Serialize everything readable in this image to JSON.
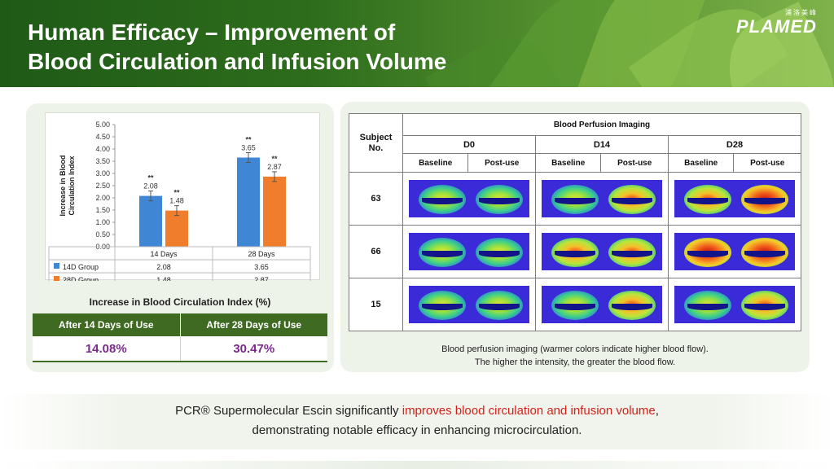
{
  "header": {
    "title_line1": "Human Efficacy – Improvement of",
    "title_line2": "Blood Circulation and Infusion Volume",
    "logo_cn": "浦洛美峰",
    "logo_text": "PLAMED"
  },
  "chart_data": {
    "type": "bar",
    "title": "",
    "ylabel": "Increase in Blood Circulation Index",
    "xlabel": "",
    "categories": [
      "14 Days",
      "28 Days"
    ],
    "series": [
      {
        "name": "14D Group",
        "values": [
          2.08,
          3.65
        ],
        "color": "#3f86d4",
        "significance": [
          "**",
          "**"
        ]
      },
      {
        "name": "28D Group",
        "values": [
          1.48,
          2.87
        ],
        "color": "#f07d2c",
        "significance": [
          "**",
          "**"
        ]
      }
    ],
    "ylim": [
      0,
      5
    ],
    "yticks": [
      "0.00",
      "0.50",
      "1.00",
      "1.50",
      "2.00",
      "2.50",
      "3.00",
      "3.50",
      "4.00",
      "4.50",
      "5.00"
    ],
    "data_table": true,
    "grid": false
  },
  "index_table": {
    "caption": "Increase in Blood Circulation Index (%)",
    "headers": [
      "After 14 Days of Use",
      "After 28 Days of Use"
    ],
    "values": [
      "14.08%",
      "30.47%"
    ]
  },
  "perfusion_table": {
    "subject_header": "Subject No.",
    "title": "Blood Perfusion Imaging",
    "timepoints": [
      "D0",
      "D14",
      "D28"
    ],
    "subheaders": [
      "Baseline",
      "Post-use"
    ],
    "subjects": [
      "63",
      "66",
      "15"
    ],
    "note_line1": "Blood perfusion imaging (warmer colors indicate higher blood flow).",
    "note_line2": "The higher the intensity, the greater the blood flow."
  },
  "footer": {
    "part1": "PCR® Supermolecular Escin significantly ",
    "highlight": "improves blood circulation and infusion volume",
    "part2": ",",
    "line2": "demonstrating notable efficacy in enhancing microcirculation."
  },
  "colors": {
    "header_dark": "#1f5a17",
    "table_header": "#3f6a22",
    "percent_text": "#7a2a8a",
    "highlight_red": "#d4201a"
  }
}
